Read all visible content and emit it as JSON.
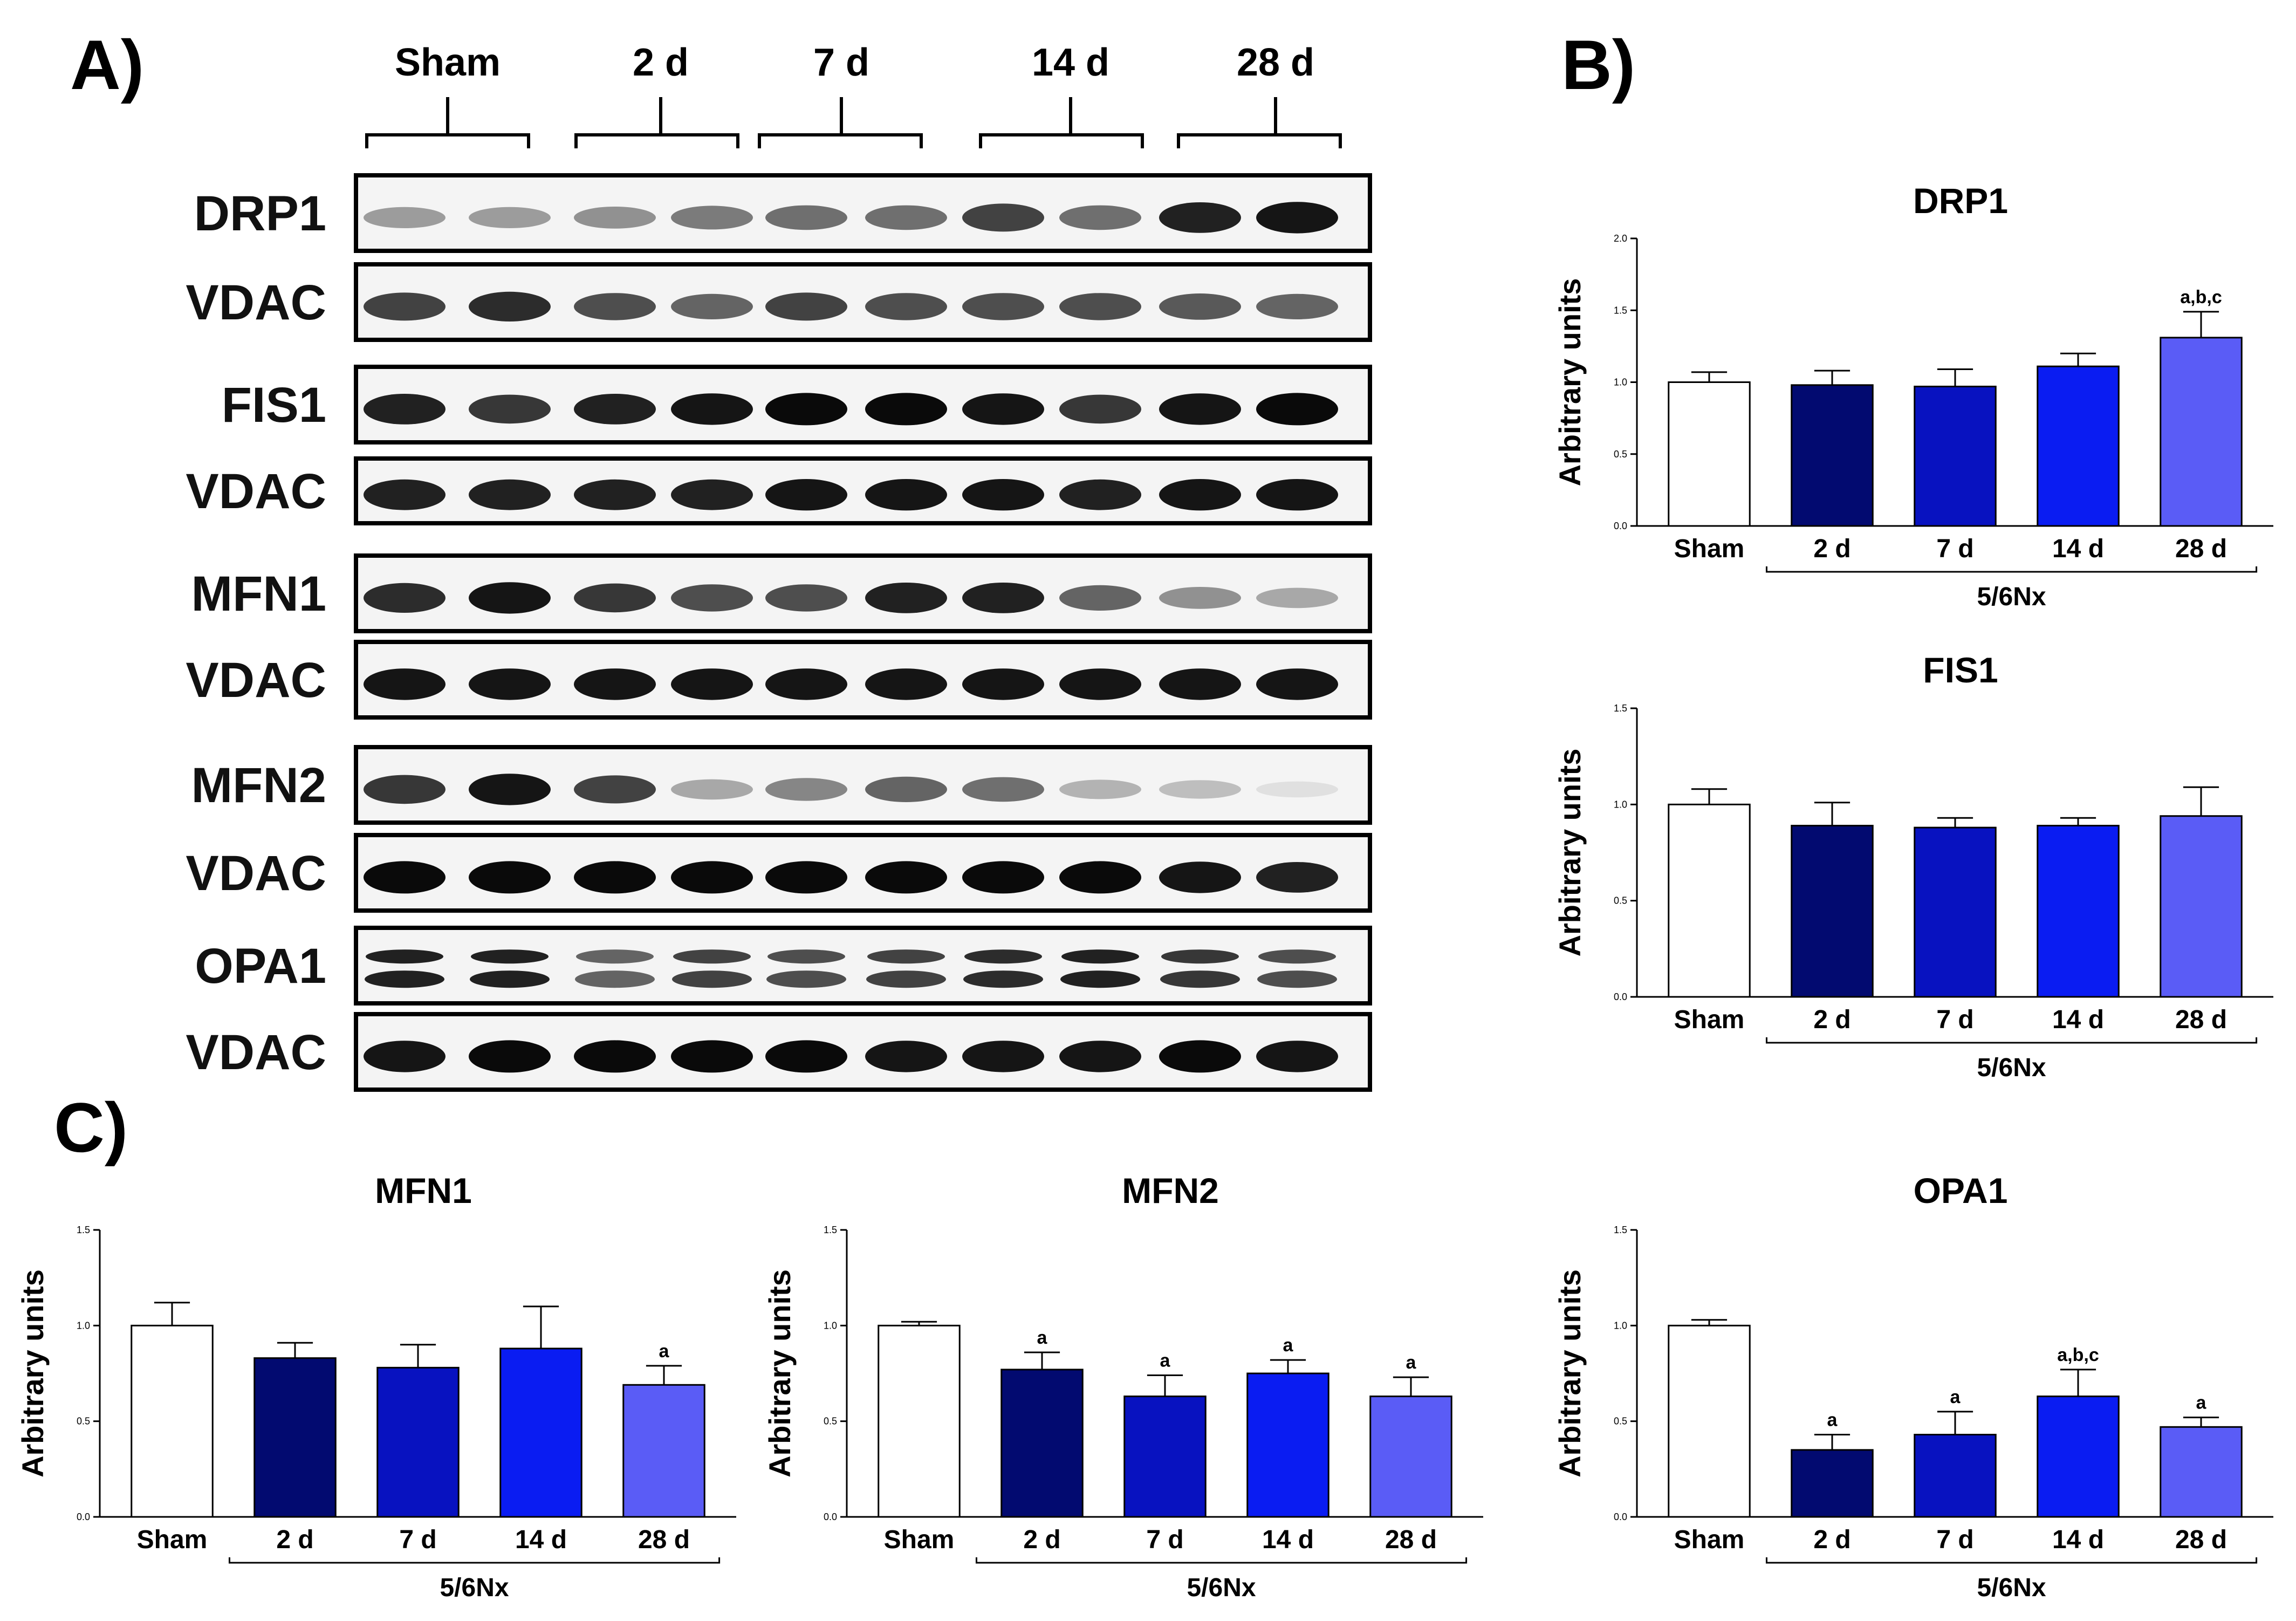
{
  "panels": {
    "a": "A)",
    "b": "B)",
    "c": "C)"
  },
  "blot": {
    "groups": [
      "Sham",
      "2 d",
      "7 d",
      "14 d",
      "28 d"
    ],
    "rows": [
      {
        "label": "DRP1",
        "intensity": [
          0.35,
          0.35,
          0.4,
          0.5,
          0.55,
          0.55,
          0.75,
          0.55,
          0.9,
          0.95
        ]
      },
      {
        "label": "VDAC",
        "intensity": [
          0.75,
          0.85,
          0.7,
          0.6,
          0.75,
          0.7,
          0.7,
          0.7,
          0.65,
          0.6
        ]
      },
      {
        "label": "FIS1",
        "intensity": [
          0.9,
          0.8,
          0.9,
          0.95,
          1.0,
          1.0,
          0.95,
          0.8,
          0.95,
          1.0
        ]
      },
      {
        "label": "VDAC",
        "intensity": [
          0.9,
          0.9,
          0.9,
          0.9,
          0.95,
          0.95,
          0.95,
          0.9,
          0.95,
          0.95
        ]
      },
      {
        "label": "MFN1",
        "intensity": [
          0.85,
          0.95,
          0.8,
          0.7,
          0.7,
          0.9,
          0.9,
          0.6,
          0.4,
          0.3
        ]
      },
      {
        "label": "VDAC",
        "intensity": [
          0.95,
          0.95,
          0.95,
          0.95,
          0.95,
          0.95,
          0.95,
          0.95,
          0.95,
          0.95
        ]
      },
      {
        "label": "MFN2",
        "intensity": [
          0.8,
          0.95,
          0.75,
          0.3,
          0.45,
          0.6,
          0.55,
          0.25,
          0.2,
          0.05
        ]
      },
      {
        "label": "VDAC",
        "intensity": [
          1.0,
          1.0,
          1.0,
          1.0,
          1.0,
          1.0,
          1.0,
          1.0,
          0.95,
          0.9
        ]
      },
      {
        "label": "OPA1",
        "intensity": [
          0.9,
          0.9,
          0.6,
          0.75,
          0.7,
          0.75,
          0.85,
          0.9,
          0.8,
          0.7
        ]
      },
      {
        "label": "VDAC",
        "intensity": [
          0.95,
          1.0,
          1.0,
          1.0,
          1.0,
          0.95,
          0.95,
          0.95,
          1.0,
          0.95
        ]
      }
    ]
  },
  "colors": {
    "sham": "#ffffff",
    "d2": "#020a70",
    "d7": "#0812c0",
    "d14": "#0a1cf2",
    "d28": "#5a5cf6"
  },
  "chart_data": [
    {
      "id": "drp1",
      "type": "bar",
      "title": "DRP1",
      "categories": [
        "Sham",
        "2 d",
        "7 d",
        "14 d",
        "28 d"
      ],
      "values": [
        1.0,
        0.98,
        0.97,
        1.11,
        1.31
      ],
      "errors": [
        0.07,
        0.1,
        0.12,
        0.09,
        0.18
      ],
      "significance": [
        "",
        "",
        "",
        "",
        "a,b,c"
      ],
      "ylabel": "Arbitrary units",
      "group_label": "5/6Nx",
      "ylim": [
        0,
        2.0
      ],
      "yticks": [
        "0.0",
        "0.5",
        "1.0",
        "1.5",
        "2.0"
      ]
    },
    {
      "id": "fis1",
      "type": "bar",
      "title": "FIS1",
      "categories": [
        "Sham",
        "2 d",
        "7 d",
        "14 d",
        "28 d"
      ],
      "values": [
        1.0,
        0.89,
        0.88,
        0.89,
        0.94
      ],
      "errors": [
        0.08,
        0.12,
        0.05,
        0.04,
        0.15
      ],
      "significance": [
        "",
        "",
        "",
        "",
        ""
      ],
      "ylabel": "Arbitrary units",
      "group_label": "5/6Nx",
      "ylim": [
        0,
        1.5
      ],
      "yticks": [
        "0.0",
        "0.5",
        "1.0",
        "1.5"
      ]
    },
    {
      "id": "mfn1",
      "type": "bar",
      "title": "MFN1",
      "categories": [
        "Sham",
        "2 d",
        "7 d",
        "14 d",
        "28 d"
      ],
      "values": [
        1.0,
        0.83,
        0.78,
        0.88,
        0.69
      ],
      "errors": [
        0.12,
        0.08,
        0.12,
        0.22,
        0.1
      ],
      "significance": [
        "",
        "",
        "",
        "",
        "a"
      ],
      "ylabel": "Arbitrary units",
      "group_label": "5/6Nx",
      "ylim": [
        0,
        1.5
      ],
      "yticks": [
        "0.0",
        "0.5",
        "1.0",
        "1.5"
      ]
    },
    {
      "id": "mfn2",
      "type": "bar",
      "title": "MFN2",
      "categories": [
        "Sham",
        "2 d",
        "7 d",
        "14 d",
        "28 d"
      ],
      "values": [
        1.0,
        0.77,
        0.63,
        0.75,
        0.63
      ],
      "errors": [
        0.02,
        0.09,
        0.11,
        0.07,
        0.1
      ],
      "significance": [
        "",
        "a",
        "a",
        "a",
        "a"
      ],
      "ylabel": "Arbitrary units",
      "group_label": "5/6Nx",
      "ylim": [
        0,
        1.5
      ],
      "yticks": [
        "0.0",
        "0.5",
        "1.0",
        "1.5"
      ]
    },
    {
      "id": "opa1",
      "type": "bar",
      "title": "OPA1",
      "categories": [
        "Sham",
        "2 d",
        "7 d",
        "14 d",
        "28 d"
      ],
      "values": [
        1.0,
        0.35,
        0.43,
        0.63,
        0.47
      ],
      "errors": [
        0.03,
        0.08,
        0.12,
        0.14,
        0.05
      ],
      "significance": [
        "",
        "a",
        "a",
        "a,b,c",
        "a"
      ],
      "ylabel": "Arbitrary units",
      "group_label": "5/6Nx",
      "ylim": [
        0,
        1.5
      ],
      "yticks": [
        "0.0",
        "0.5",
        "1.0",
        "1.5"
      ]
    }
  ]
}
